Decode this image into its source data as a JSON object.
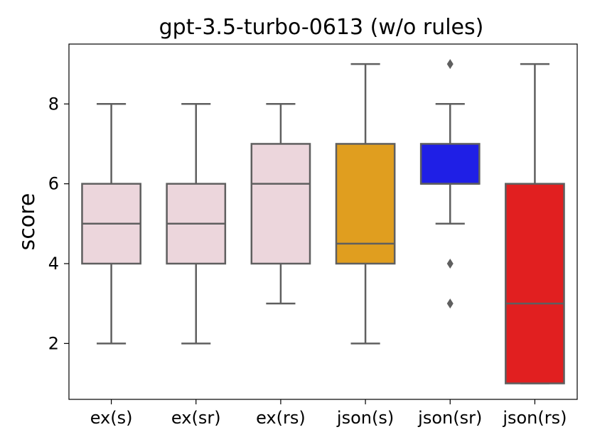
{
  "chart_data": {
    "type": "box",
    "title": "gpt-3.5-turbo-0613 (w/o rules)",
    "xlabel": "",
    "ylabel": "score",
    "ylim": [
      0.6,
      9.5
    ],
    "yticks": [
      2,
      4,
      6,
      8
    ],
    "grid": false,
    "legend": "none",
    "categories": [
      "ex(s)",
      "ex(sr)",
      "ex(rs)",
      "json(s)",
      "json(sr)",
      "json(rs)"
    ],
    "boxes": [
      {
        "category": "ex(s)",
        "whisker_low": 2,
        "q1": 4,
        "median": 5,
        "q3": 6,
        "whisker_high": 8,
        "outliers": [],
        "color": "#ecd6dc"
      },
      {
        "category": "ex(sr)",
        "whisker_low": 2,
        "q1": 4,
        "median": 5,
        "q3": 6,
        "whisker_high": 8,
        "outliers": [],
        "color": "#ecd6dc"
      },
      {
        "category": "ex(rs)",
        "whisker_low": 3,
        "q1": 4,
        "median": 6,
        "q3": 7,
        "whisker_high": 8,
        "outliers": [],
        "color": "#ecd6dc"
      },
      {
        "category": "json(s)",
        "whisker_low": 2,
        "q1": 4,
        "median": 4.5,
        "q3": 7,
        "whisker_high": 9,
        "outliers": [],
        "color": "#e09e1f"
      },
      {
        "category": "json(sr)",
        "whisker_low": 5,
        "q1": 6,
        "median": 6,
        "q3": 7,
        "whisker_high": 8,
        "outliers": [
          9,
          4,
          3
        ],
        "color": "#1f1fe6"
      },
      {
        "category": "json(rs)",
        "whisker_low": 1,
        "q1": 1,
        "median": 3,
        "q3": 6,
        "whisker_high": 9,
        "outliers": [],
        "color": "#e11f20"
      }
    ]
  }
}
